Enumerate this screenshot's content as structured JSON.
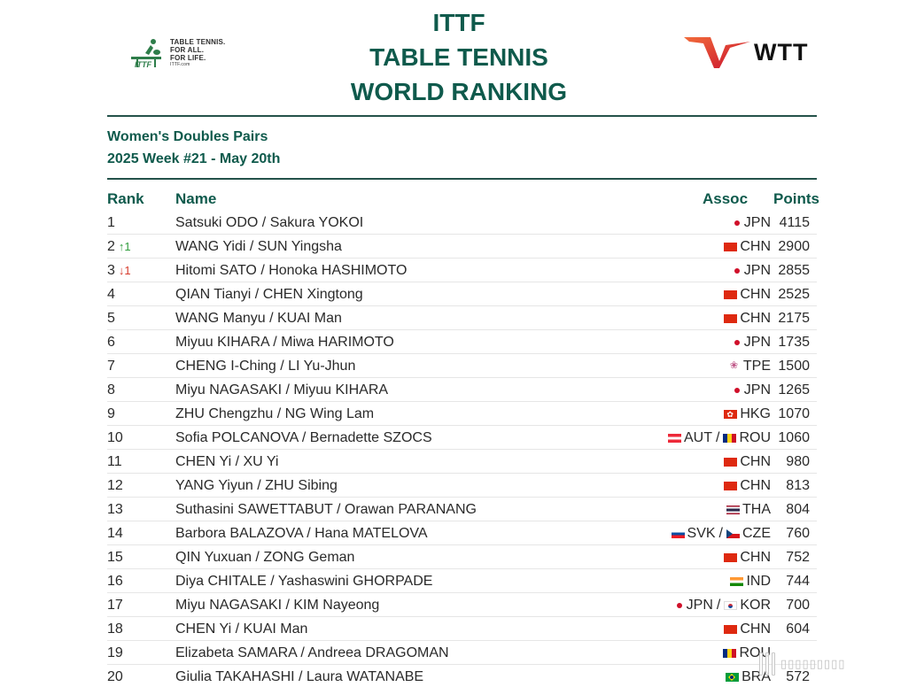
{
  "header": {
    "ittf_logo": {
      "lines": [
        "TABLE TENNIS.",
        "FOR ALL.",
        "FOR LIFE."
      ],
      "url": "ITTF.com",
      "icon": "ittf-table-tennis-icon"
    },
    "title_lines": [
      "ITTF",
      "TABLE TENNIS",
      "WORLD RANKING"
    ],
    "wtt_logo": {
      "text": "WTT",
      "icon": "wtt-wing-mark-icon"
    }
  },
  "category": "Women's Doubles Pairs",
  "week": "2025 Week #21 - May 20th",
  "columns": {
    "rank": "Rank",
    "name": "Name",
    "assoc": "Assoc",
    "points": "Points"
  },
  "colors": {
    "title_green": "#0f5a4c",
    "rule": "#24524a",
    "up": "#2e9c3b",
    "down": "#d63a2b",
    "wtt_red": "#e8362b"
  },
  "rows": [
    {
      "rank": "1",
      "move": "",
      "dir": "",
      "name": "Satsuki ODO / Sakura YOKOI",
      "assoc": [
        {
          "flag": "jpn",
          "code": "JPN"
        }
      ],
      "points": "4115"
    },
    {
      "rank": "2",
      "move": "↑1",
      "dir": "up",
      "name": "WANG Yidi / SUN Yingsha",
      "assoc": [
        {
          "flag": "chn",
          "code": "CHN"
        }
      ],
      "points": "2900"
    },
    {
      "rank": "3",
      "move": "↓1",
      "dir": "down",
      "name": "Hitomi SATO / Honoka HASHIMOTO",
      "assoc": [
        {
          "flag": "jpn",
          "code": "JPN"
        }
      ],
      "points": "2855"
    },
    {
      "rank": "4",
      "move": "",
      "dir": "",
      "name": "QIAN Tianyi / CHEN Xingtong",
      "assoc": [
        {
          "flag": "chn",
          "code": "CHN"
        }
      ],
      "points": "2525"
    },
    {
      "rank": "5",
      "move": "",
      "dir": "",
      "name": "WANG Manyu / KUAI Man",
      "assoc": [
        {
          "flag": "chn",
          "code": "CHN"
        }
      ],
      "points": "2175"
    },
    {
      "rank": "6",
      "move": "",
      "dir": "",
      "name": "Miyuu KIHARA / Miwa HARIMOTO",
      "assoc": [
        {
          "flag": "jpn",
          "code": "JPN"
        }
      ],
      "points": "1735"
    },
    {
      "rank": "7",
      "move": "",
      "dir": "",
      "name": "CHENG I-Ching / LI Yu-Jhun",
      "assoc": [
        {
          "flag": "tpe",
          "code": "TPE"
        }
      ],
      "points": "1500"
    },
    {
      "rank": "8",
      "move": "",
      "dir": "",
      "name": "Miyu NAGASAKI / Miyuu KIHARA",
      "assoc": [
        {
          "flag": "jpn",
          "code": "JPN"
        }
      ],
      "points": "1265"
    },
    {
      "rank": "9",
      "move": "",
      "dir": "",
      "name": "ZHU Chengzhu / NG Wing Lam",
      "assoc": [
        {
          "flag": "hkg",
          "code": "HKG"
        }
      ],
      "points": "1070"
    },
    {
      "rank": "10",
      "move": "",
      "dir": "",
      "name": "Sofia POLCANOVA / Bernadette SZOCS",
      "assoc": [
        {
          "flag": "aut",
          "code": "AUT"
        },
        {
          "flag": "rou",
          "code": "ROU"
        }
      ],
      "points": "1060"
    },
    {
      "rank": "11",
      "move": "",
      "dir": "",
      "name": "CHEN Yi / XU Yi",
      "assoc": [
        {
          "flag": "chn",
          "code": "CHN"
        }
      ],
      "points": "980"
    },
    {
      "rank": "12",
      "move": "",
      "dir": "",
      "name": "YANG Yiyun / ZHU Sibing",
      "assoc": [
        {
          "flag": "chn",
          "code": "CHN"
        }
      ],
      "points": "813"
    },
    {
      "rank": "13",
      "move": "",
      "dir": "",
      "name": "Suthasini SAWETTABUT / Orawan PARANANG",
      "assoc": [
        {
          "flag": "tha",
          "code": "THA"
        }
      ],
      "points": "804"
    },
    {
      "rank": "14",
      "move": "",
      "dir": "",
      "name": "Barbora BALAZOVA / Hana MATELOVA",
      "assoc": [
        {
          "flag": "svk",
          "code": "SVK"
        },
        {
          "flag": "cze",
          "code": "CZE"
        }
      ],
      "points": "760"
    },
    {
      "rank": "15",
      "move": "",
      "dir": "",
      "name": "QIN Yuxuan / ZONG Geman",
      "assoc": [
        {
          "flag": "chn",
          "code": "CHN"
        }
      ],
      "points": "752"
    },
    {
      "rank": "16",
      "move": "",
      "dir": "",
      "name": "Diya CHITALE / Yashaswini GHORPADE",
      "assoc": [
        {
          "flag": "ind",
          "code": "IND"
        }
      ],
      "points": "744"
    },
    {
      "rank": "17",
      "move": "",
      "dir": "",
      "name": "Miyu NAGASAKI / KIM Nayeong",
      "assoc": [
        {
          "flag": "jpn",
          "code": "JPN"
        },
        {
          "flag": "kor",
          "code": "KOR"
        }
      ],
      "points": "700"
    },
    {
      "rank": "18",
      "move": "",
      "dir": "",
      "name": "CHEN Yi / KUAI Man",
      "assoc": [
        {
          "flag": "chn",
          "code": "CHN"
        }
      ],
      "points": "604"
    },
    {
      "rank": "19",
      "move": "",
      "dir": "",
      "name": "Elizabeta SAMARA / Andreea DRAGOMAN",
      "assoc": [
        {
          "flag": "rou",
          "code": "ROU"
        }
      ],
      "points": ""
    },
    {
      "rank": "20",
      "move": "",
      "dir": "",
      "name": "Giulia TAKAHASHI / Laura WATANABE",
      "assoc": [
        {
          "flag": "bra",
          "code": "BRA"
        }
      ],
      "points": "572"
    }
  ],
  "assoc_separator": "/",
  "watermark": {
    "icon": "watermark-bars-icon"
  }
}
